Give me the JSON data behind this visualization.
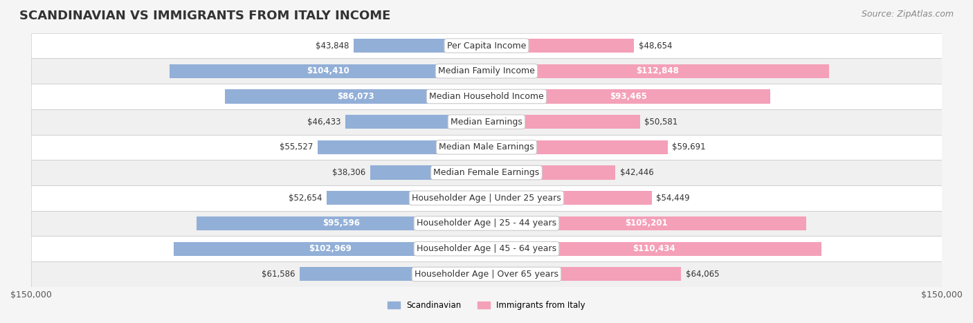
{
  "title": "SCANDINAVIAN VS IMMIGRANTS FROM ITALY INCOME",
  "source": "Source: ZipAtlas.com",
  "categories": [
    "Per Capita Income",
    "Median Family Income",
    "Median Household Income",
    "Median Earnings",
    "Median Male Earnings",
    "Median Female Earnings",
    "Householder Age | Under 25 years",
    "Householder Age | 25 - 44 years",
    "Householder Age | 45 - 64 years",
    "Householder Age | Over 65 years"
  ],
  "scandinavian": [
    43848,
    104410,
    86073,
    46433,
    55527,
    38306,
    52654,
    95596,
    102969,
    61586
  ],
  "italy": [
    48654,
    112848,
    93465,
    50581,
    59691,
    42446,
    54449,
    105201,
    110434,
    64065
  ],
  "scand_labels": [
    "$43,848",
    "$104,410",
    "$86,073",
    "$46,433",
    "$55,527",
    "$38,306",
    "$52,654",
    "$95,596",
    "$102,969",
    "$61,586"
  ],
  "italy_labels": [
    "$48,654",
    "$112,848",
    "$93,465",
    "$50,581",
    "$59,691",
    "$42,446",
    "$54,449",
    "$105,201",
    "$110,434",
    "$64,065"
  ],
  "scand_color": "#92afd7",
  "italy_color": "#f4a0b8",
  "scand_label_inside": [
    false,
    true,
    true,
    false,
    false,
    false,
    false,
    true,
    true,
    false
  ],
  "italy_label_inside": [
    false,
    true,
    true,
    false,
    false,
    false,
    false,
    true,
    true,
    false
  ],
  "xlim": 150000,
  "bar_height": 0.55,
  "background_color": "#f5f5f5",
  "row_bg_light": "#ffffff",
  "row_bg_alt": "#eeeeee",
  "legend_labels": [
    "Scandinavian",
    "Immigrants from Italy"
  ],
  "title_fontsize": 13,
  "source_fontsize": 9,
  "label_fontsize": 8.5,
  "tick_fontsize": 9,
  "category_fontsize": 9
}
